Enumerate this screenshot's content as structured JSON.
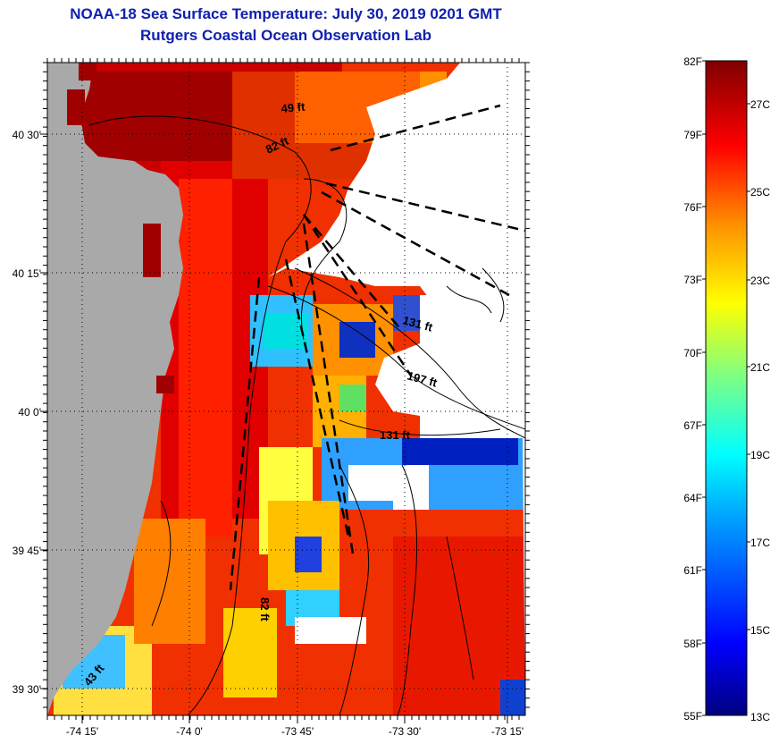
{
  "header": {
    "title": "NOAA-18 Sea Surface Temperature:  July 30, 2019 0201 GMT",
    "subtitle": "Rutgers Coastal Ocean Observation Lab"
  },
  "axes": {
    "lat_labels": [
      "40 30'",
      "40 15'",
      "40 0'",
      "39 45'",
      "39 30'"
    ],
    "lon_labels": [
      "-74 15'",
      "-74 0'",
      "-73 45'",
      "-73 30'",
      "-73 15'"
    ]
  },
  "contour_labels": [
    "49 ft",
    "82 ft",
    "131 ft",
    "197 ft",
    "131 ft",
    "82 ft",
    "43 ft"
  ],
  "colorbar": {
    "fahrenheit": [
      "82F",
      "79F",
      "76F",
      "73F",
      "70F",
      "67F",
      "64F",
      "61F",
      "58F",
      "55F"
    ],
    "celsius": [
      "27C",
      "25C",
      "23C",
      "21C",
      "19C",
      "17C",
      "15C",
      "13C"
    ]
  },
  "colors": {
    "land": "#a9a9a9",
    "no_data": "#ffffff",
    "title": "#1020b0"
  }
}
